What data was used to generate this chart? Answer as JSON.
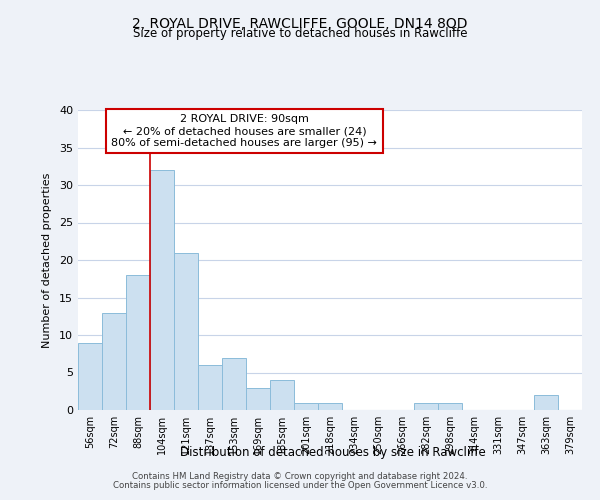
{
  "title": "2, ROYAL DRIVE, RAWCLIFFE, GOOLE, DN14 8QD",
  "subtitle": "Size of property relative to detached houses in Rawcliffe",
  "xlabel": "Distribution of detached houses by size in Rawcliffe",
  "ylabel": "Number of detached properties",
  "bar_labels": [
    "56sqm",
    "72sqm",
    "88sqm",
    "104sqm",
    "121sqm",
    "137sqm",
    "153sqm",
    "169sqm",
    "185sqm",
    "201sqm",
    "218sqm",
    "234sqm",
    "250sqm",
    "266sqm",
    "282sqm",
    "298sqm",
    "314sqm",
    "331sqm",
    "347sqm",
    "363sqm",
    "379sqm"
  ],
  "bar_values": [
    9,
    13,
    18,
    32,
    21,
    6,
    7,
    3,
    4,
    1,
    1,
    0,
    0,
    0,
    1,
    1,
    0,
    0,
    0,
    2,
    0
  ],
  "bar_color": "#cce0f0",
  "bar_edge_color": "#8bbcda",
  "vline_color": "#cc0000",
  "annotation_text_line1": "2 ROYAL DRIVE: 90sqm",
  "annotation_text_line2": "← 20% of detached houses are smaller (24)",
  "annotation_text_line3": "80% of semi-detached houses are larger (95) →",
  "box_color": "white",
  "box_edge_color": "#cc0000",
  "ylim": [
    0,
    40
  ],
  "yticks": [
    0,
    5,
    10,
    15,
    20,
    25,
    30,
    35,
    40
  ],
  "footnote1": "Contains HM Land Registry data © Crown copyright and database right 2024.",
  "footnote2": "Contains public sector information licensed under the Open Government Licence v3.0.",
  "bg_color": "#eef2f8",
  "plot_bg_color": "#ffffff",
  "grid_color": "#c8d4e8"
}
